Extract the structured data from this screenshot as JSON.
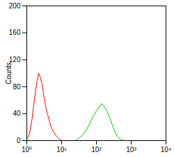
{
  "chart_data": {
    "type": "line",
    "y_label": "Counts",
    "log": "x",
    "grid": false,
    "xlim": [
      1,
      10000
    ],
    "xticks": [
      {
        "value": 1,
        "label": "10⁰"
      },
      {
        "value": 10,
        "label": "10¹"
      },
      {
        "value": 100,
        "label": "10²"
      },
      {
        "value": 1000,
        "label": "10³"
      },
      {
        "value": 10000,
        "label": "10⁴"
      }
    ],
    "ylim": [
      0,
      200
    ],
    "yticks": [
      0,
      40,
      80,
      120,
      160,
      200
    ],
    "series": [
      {
        "color": "#ff0000",
        "x": [
          1.0,
          1.2,
          1.4,
          1.6,
          1.8,
          2.0,
          2.2,
          2.4,
          2.7,
          3.0,
          3.5,
          4.0,
          4.5,
          5.0,
          6.0,
          7.0,
          8.0,
          9.0,
          10.0
        ],
        "values": [
          2,
          10,
          30,
          55,
          75,
          90,
          100,
          95,
          85,
          70,
          50,
          38,
          28,
          20,
          12,
          7,
          4,
          2,
          0
        ]
      },
      {
        "color": "#00cc00",
        "x": [
          25,
          30,
          40,
          50,
          60,
          70,
          80,
          100,
          120,
          140,
          160,
          180,
          200,
          250,
          300,
          350,
          400,
          500,
          600
        ],
        "values": [
          0,
          3,
          8,
          15,
          22,
          30,
          36,
          44,
          50,
          55,
          52,
          48,
          44,
          32,
          20,
          12,
          6,
          2,
          0
        ]
      }
    ]
  }
}
